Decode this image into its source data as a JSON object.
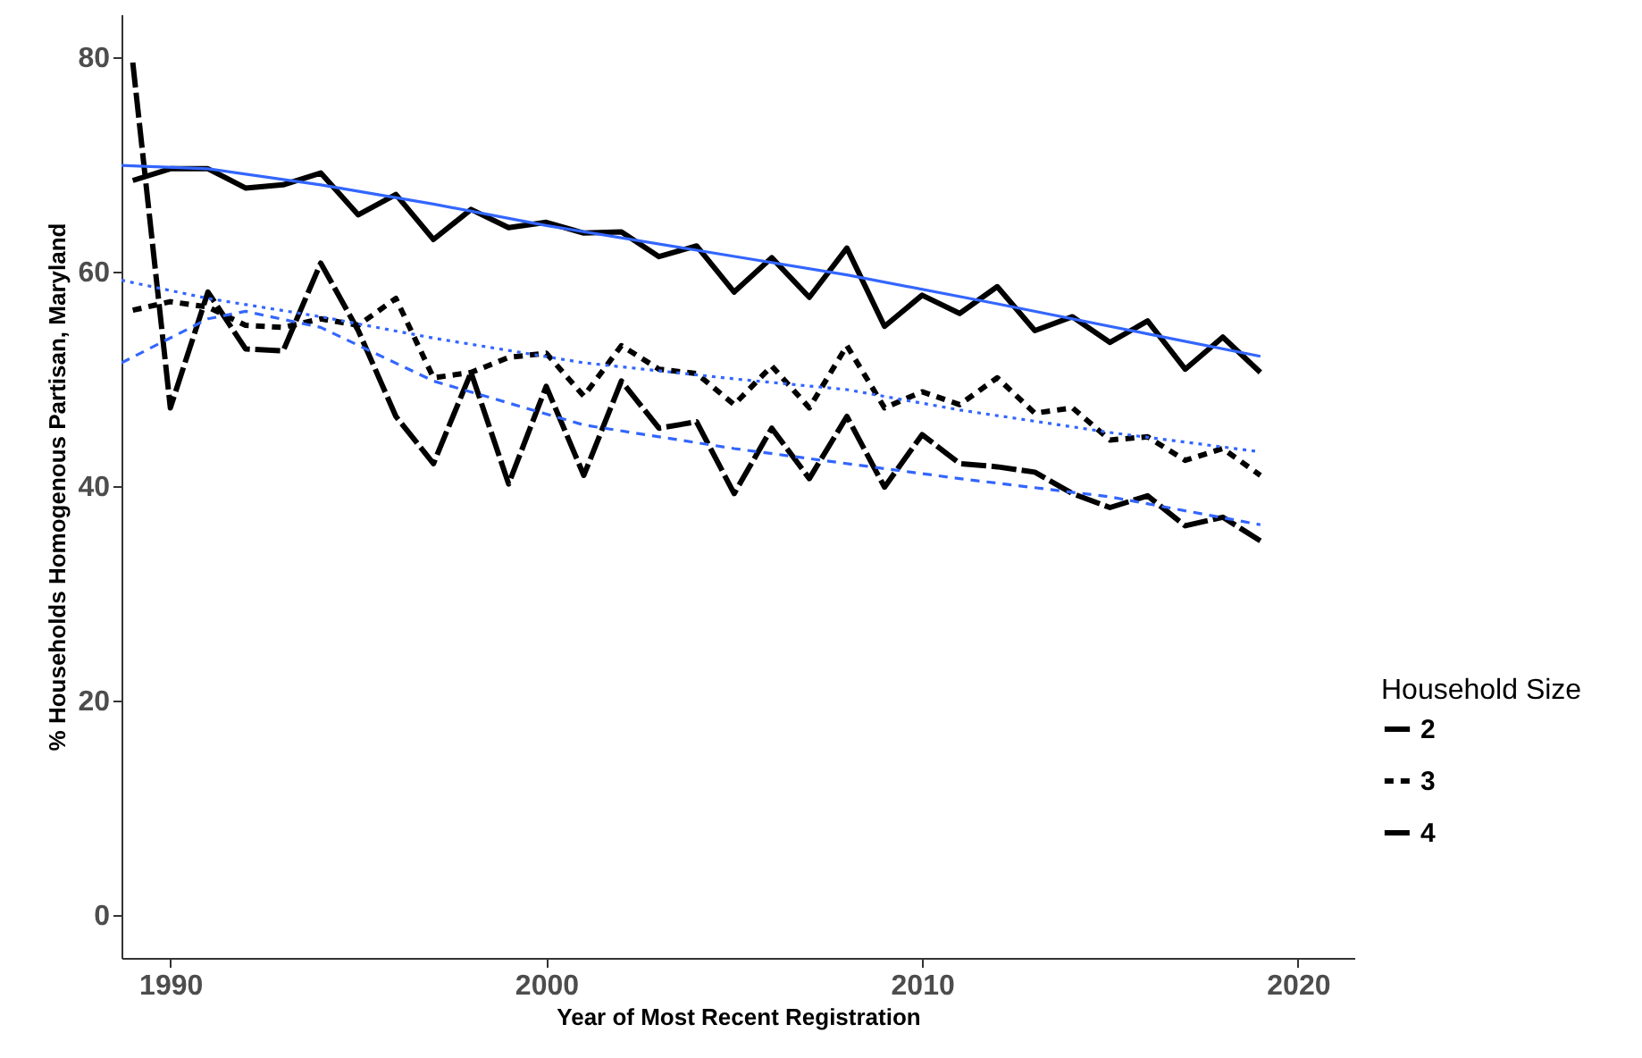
{
  "chart_data": {
    "type": "line",
    "xlabel": "Year of Most Recent Registration",
    "ylabel": "% Households Homogenous Partisan, Maryland",
    "legend_title": "Household Size",
    "x": [
      1989,
      1990,
      1991,
      1992,
      1993,
      1994,
      1995,
      1996,
      1997,
      1998,
      1999,
      2000,
      2001,
      2002,
      2003,
      2004,
      2005,
      2006,
      2007,
      2008,
      2009,
      2010,
      2011,
      2012,
      2013,
      2014,
      2015,
      2016,
      2017,
      2018,
      2019
    ],
    "series": [
      {
        "name": "2",
        "color": "#000000",
        "line_style": "solid",
        "values": [
          68.5,
          69.6,
          69.6,
          67.8,
          68.1,
          69.2,
          65.3,
          67.2,
          63.0,
          65.8,
          64.1,
          64.6,
          63.6,
          63.7,
          61.4,
          62.4,
          58.1,
          61.3,
          57.6,
          62.2,
          54.9,
          57.8,
          56.1,
          58.6,
          54.5,
          55.8,
          53.4,
          55.4,
          50.9,
          53.9,
          50.6
        ]
      },
      {
        "name": "3",
        "color": "#000000",
        "line_style": "dashed",
        "values": [
          56.4,
          57.2,
          56.7,
          55.0,
          54.8,
          55.6,
          55.0,
          57.5,
          50.1,
          50.6,
          52.0,
          52.4,
          48.4,
          53.1,
          50.9,
          50.5,
          47.6,
          51.2,
          47.3,
          53.1,
          47.3,
          48.8,
          47.6,
          50.1,
          46.8,
          47.3,
          44.3,
          44.6,
          42.4,
          43.5,
          41.0
        ]
      },
      {
        "name": "4",
        "color": "#000000",
        "line_style": "dashed",
        "values": [
          79.5,
          47.3,
          58.1,
          52.8,
          52.6,
          60.8,
          54.5,
          46.5,
          42.1,
          50.6,
          40.2,
          49.3,
          41.0,
          49.8,
          45.4,
          46.0,
          39.3,
          45.4,
          40.7,
          46.5,
          39.9,
          44.8,
          42.1,
          41.8,
          41.3,
          39.3,
          38.0,
          39.1,
          36.3,
          37.1,
          34.9
        ]
      },
      {
        "type": "line",
        "color": "#3366ff",
        "line_style": "solid",
        "x": [
          1988.7,
          1991,
          1994,
          1997,
          2000,
          2004,
          2008,
          2012,
          2016,
          2019
        ],
        "values": [
          69.9,
          69.6,
          68.1,
          66.3,
          64.3,
          62.0,
          59.7,
          57.0,
          54.2,
          52.1
        ]
      },
      {
        "type": "line",
        "color": "#3366ff",
        "line_style": "dotted",
        "x": [
          1988.7,
          1991,
          1994,
          1997,
          2001,
          2005,
          2008,
          2011,
          2015,
          2019
        ],
        "values": [
          59.2,
          57.5,
          55.8,
          53.8,
          51.5,
          50.0,
          49.0,
          47.1,
          45.0,
          43.2
        ]
      },
      {
        "type": "line",
        "color": "#3366ff",
        "line_style": "dashed",
        "x": [
          1988.7,
          1991,
          1992,
          1994,
          1997,
          2001,
          2005,
          2011,
          2015,
          2019
        ],
        "values": [
          51.5,
          55.6,
          56.3,
          54.8,
          49.8,
          45.7,
          43.5,
          40.7,
          39.0,
          36.4
        ]
      }
    ],
    "xlim": [
      1988.7,
      2021.5
    ],
    "xticks": [
      1990,
      2000,
      2010,
      2020
    ],
    "ylim": [
      -4,
      84
    ],
    "yticks": [
      0,
      20,
      40,
      60,
      80
    ],
    "grid": false,
    "legend": "right"
  }
}
